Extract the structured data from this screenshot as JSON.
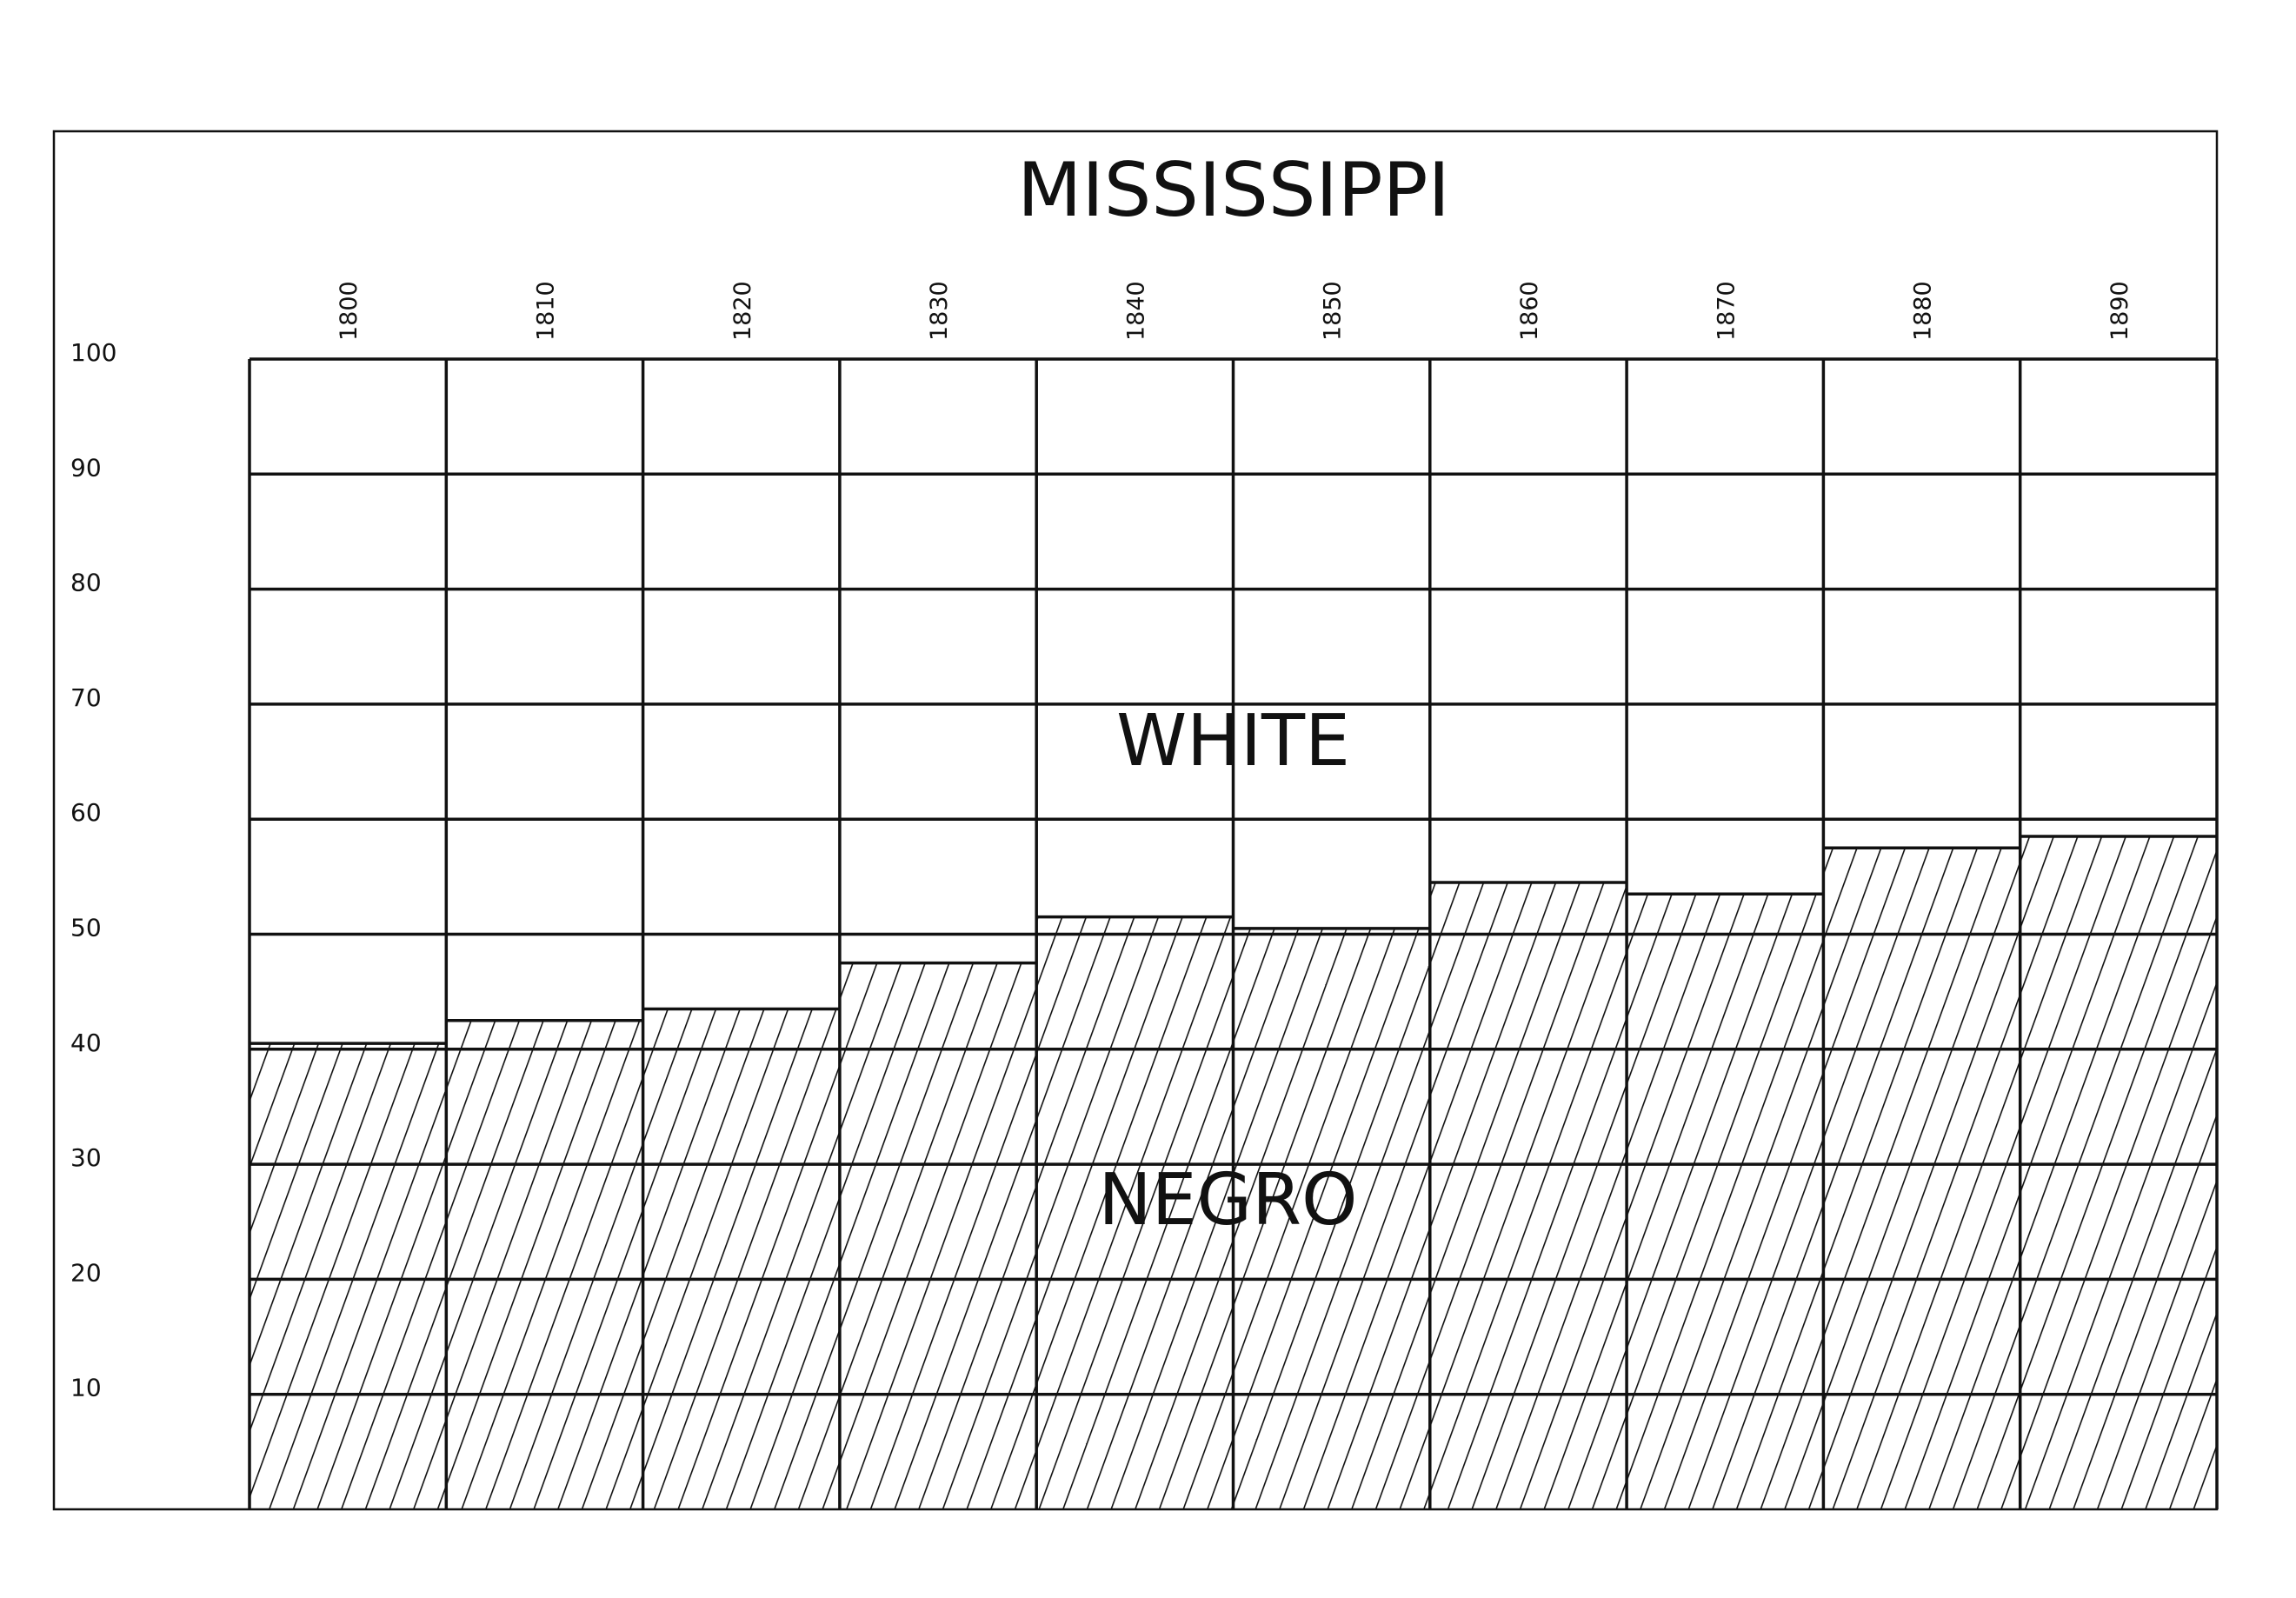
{
  "chart_data": {
    "type": "bar",
    "title": "MISSISSIPPI",
    "categories": [
      "1800",
      "1810",
      "1820",
      "1830",
      "1840",
      "1850",
      "1860",
      "1870",
      "1880",
      "1890"
    ],
    "series": [
      {
        "name": "NEGRO",
        "values": [
          40.5,
          42.5,
          43.5,
          47.5,
          51.5,
          50.5,
          54.5,
          53.5,
          57.5,
          58.5
        ],
        "pattern": "diagonal-hatch"
      },
      {
        "name": "WHITE",
        "values": [
          59.5,
          57.5,
          56.5,
          52.5,
          48.5,
          49.5,
          45.5,
          46.5,
          42.5,
          41.5
        ],
        "pattern": "none"
      }
    ],
    "stacked": true,
    "ylim": [
      0,
      100
    ],
    "yticks": [
      "10",
      "20",
      "30",
      "40",
      "50",
      "60",
      "70",
      "80",
      "90",
      "100"
    ],
    "xlabel": "",
    "ylabel": "",
    "grid": true,
    "legend": "none",
    "colors": {
      "line": "#111111",
      "background": "#ffffff"
    }
  }
}
